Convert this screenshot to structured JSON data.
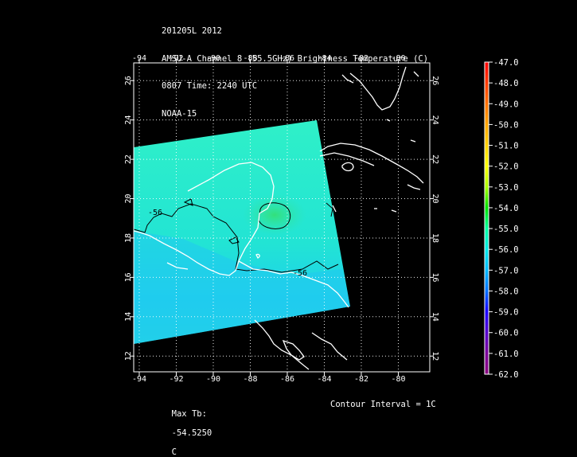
{
  "title": {
    "line1": "201205L 2012",
    "line2": "AMSU-A Channel 8 (55.5GHz) Brightness Temperature (C)",
    "line3": "0807 Time: 2240 UTC",
    "line4": "NOAA-15"
  },
  "footer": {
    "max_tb_label": "Max Tb:",
    "max_tb_value": "-54.5250",
    "max_tb_unit": "C",
    "contour_interval": "Contour Interval = 1C"
  },
  "chart_data": {
    "type": "heatmap",
    "x_ticks": [
      "-94",
      "-92",
      "-90",
      "-88",
      "-86",
      "-84",
      "-82",
      "-80"
    ],
    "y_ticks": [
      "12",
      "14",
      "16",
      "18",
      "20",
      "22",
      "24",
      "26"
    ],
    "xlim": [
      -94.3,
      -78.3
    ],
    "ylim": [
      11.2,
      26.9
    ],
    "contour_labels": [
      "-56",
      "-56"
    ],
    "colorbar": {
      "labels": [
        "-47.0",
        "-48.0",
        "-49.0",
        "-50.0",
        "-51.0",
        "-52.0",
        "-53.0",
        "-54.0",
        "-55.0",
        "-56.0",
        "-57.0",
        "-58.0",
        "-59.0",
        "-60.0",
        "-61.0",
        "-62.0"
      ],
      "colors": [
        "#ff0000",
        "#ff3a00",
        "#ff7000",
        "#ffa500",
        "#ffd000",
        "#ffff00",
        "#aaff00",
        "#00e000",
        "#00ffa0",
        "#00e8e8",
        "#00b8ff",
        "#0070ff",
        "#1a00ff",
        "#5500cc",
        "#7a0099",
        "#8a0080"
      ]
    },
    "grid": "dotted"
  }
}
